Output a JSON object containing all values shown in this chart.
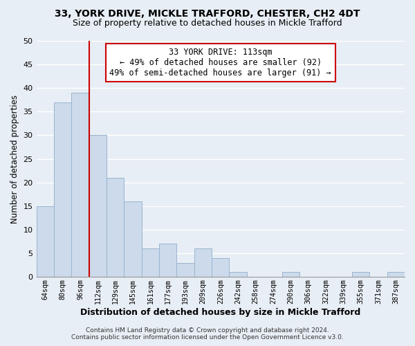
{
  "title1": "33, YORK DRIVE, MICKLE TRAFFORD, CHESTER, CH2 4DT",
  "title2": "Size of property relative to detached houses in Mickle Trafford",
  "xlabel": "Distribution of detached houses by size in Mickle Trafford",
  "ylabel": "Number of detached properties",
  "footer1": "Contains HM Land Registry data © Crown copyright and database right 2024.",
  "footer2": "Contains public sector information licensed under the Open Government Licence v3.0.",
  "bin_labels": [
    "64sqm",
    "80sqm",
    "96sqm",
    "112sqm",
    "129sqm",
    "145sqm",
    "161sqm",
    "177sqm",
    "193sqm",
    "209sqm",
    "226sqm",
    "242sqm",
    "258sqm",
    "274sqm",
    "290sqm",
    "306sqm",
    "322sqm",
    "339sqm",
    "355sqm",
    "371sqm",
    "387sqm"
  ],
  "bar_heights": [
    15,
    37,
    39,
    30,
    21,
    16,
    6,
    7,
    3,
    6,
    4,
    1,
    0,
    0,
    1,
    0,
    0,
    0,
    1,
    0,
    1
  ],
  "bar_color": "#ccdaeb",
  "bar_edge_color": "#9ab4cf",
  "vline_index": 3,
  "vline_color": "#cc0000",
  "annotation_line1": "33 YORK DRIVE: 113sqm",
  "annotation_line2": "← 49% of detached houses are smaller (92)",
  "annotation_line3": "49% of semi-detached houses are larger (91) →",
  "annotation_box_color": "#ffffff",
  "annotation_box_edge": "#cc0000",
  "ylim": [
    0,
    50
  ],
  "yticks": [
    0,
    5,
    10,
    15,
    20,
    25,
    30,
    35,
    40,
    45,
    50
  ],
  "background_color": "#e8eef5",
  "plot_background": "#e8eef5",
  "grid_color": "#ffffff",
  "title1_fontsize": 10,
  "title2_fontsize": 9,
  "xlabel_fontsize": 9,
  "ylabel_fontsize": 8.5
}
